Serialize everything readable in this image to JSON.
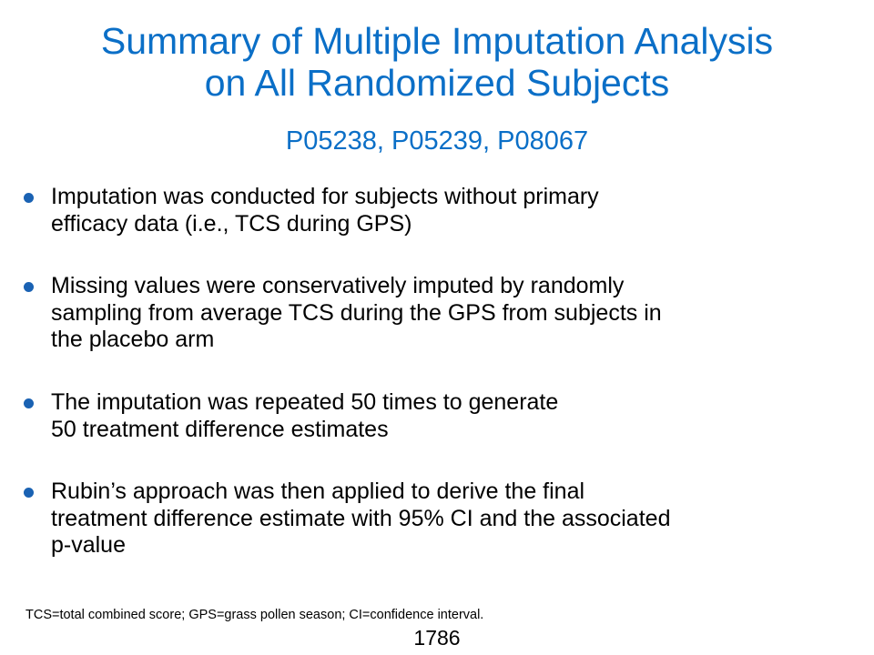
{
  "slide": {
    "title_lines": [
      "Summary of Multiple Imputation Analysis",
      "on All Randomized Subjects"
    ],
    "subtitle": "P05238, P05239, P08067",
    "bullets": [
      {
        "lines": [
          "Imputation was conducted for subjects without primary",
          "efficacy data (i.e., TCS during GPS)"
        ]
      },
      {
        "lines": [
          "Missing values were conservatively imputed by randomly",
          "sampling from average TCS during the GPS from subjects in",
          "the placebo arm"
        ]
      },
      {
        "lines": [
          "The imputation was repeated 50 times to generate",
          "50 treatment difference estimates"
        ]
      },
      {
        "lines": [
          "Rubin’s approach was then applied to derive the final",
          "treatment difference estimate with 95% CI and the associated",
          "p-value"
        ]
      }
    ],
    "footnote": "TCS=total combined score; GPS=grass pollen season; CI=confidence interval.",
    "page_number": "1786"
  },
  "colors": {
    "title": "#0b6fc7",
    "bullet_dot": "#1a62b3",
    "body_text": "#000000",
    "background": "#ffffff"
  }
}
